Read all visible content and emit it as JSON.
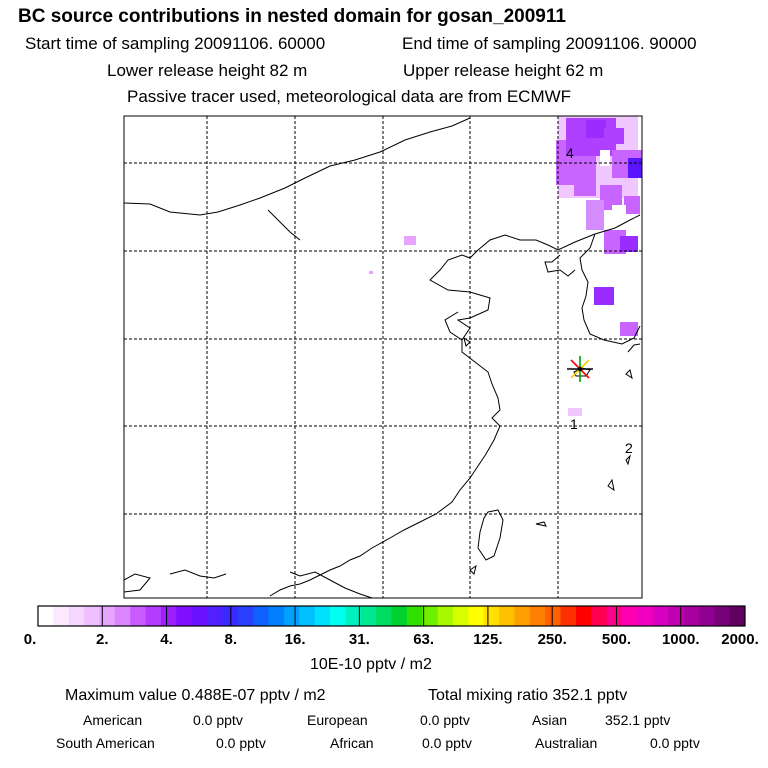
{
  "header": {
    "title": "BC  source contributions in nested domain for gosan_200911",
    "start_time": "Start time of sampling 20091106. 60000",
    "end_time": "End time of sampling 20091106. 90000",
    "lower_release": "Lower release height   82 m",
    "upper_release": "Upper release height   62 m",
    "tracer_note": "Passive tracer used, meteorological data are from ECMWF"
  },
  "map": {
    "region_labels": [
      "4",
      "1",
      "2"
    ],
    "receptor": "gosan",
    "plume_colors": {
      "light": "#f0c8ff",
      "medium": "#c864ff",
      "strong": "#9a2cff",
      "deep": "#5a14ff"
    }
  },
  "colorbar": {
    "labels": [
      "0.",
      "2.",
      "4.",
      "8.",
      "16.",
      "31.",
      "63.",
      "125.",
      "250.",
      "500.",
      "1000.",
      "2000."
    ],
    "colors": [
      "#ffffff",
      "#fbeaff",
      "#f6d6ff",
      "#efbfff",
      "#e6a4ff",
      "#d986ff",
      "#c85cff",
      "#b33cff",
      "#9a20ff",
      "#8010ff",
      "#6a12ff",
      "#5220ff",
      "#3a2aff",
      "#2a40ff",
      "#1060ff",
      "#0080ff",
      "#00a0ff",
      "#00c0ff",
      "#00e0ff",
      "#00ffee",
      "#00f0c0",
      "#00e890",
      "#00dc60",
      "#00d030",
      "#30e000",
      "#70ee00",
      "#a8f800",
      "#d8ff00",
      "#ffff00",
      "#ffe000",
      "#ffc000",
      "#ffa000",
      "#ff8000",
      "#ff6000",
      "#ff3000",
      "#ff0000",
      "#ff0050",
      "#ff0088",
      "#ff00b0",
      "#f000c0",
      "#d800c0",
      "#c000b0",
      "#a800a0",
      "#900090",
      "#780078",
      "#600060"
    ],
    "unit": "10E-10 pptv / m2"
  },
  "summary": {
    "max_value": "Maximum value  0.488E-07 pptv / m2",
    "total_mixing": "Total mixing ratio     352.1 pptv",
    "american_label": "American",
    "american_value": "0.0 pptv",
    "european_label": "European",
    "european_value": "0.0 pptv",
    "asian_label": "Asian",
    "asian_value": "352.1 pptv",
    "south_american_label": "South American",
    "south_american_value": "0.0 pptv",
    "african_label": "African",
    "african_value": "0.0 pptv",
    "australian_label": "Australian",
    "australian_value": "0.0 pptv"
  }
}
